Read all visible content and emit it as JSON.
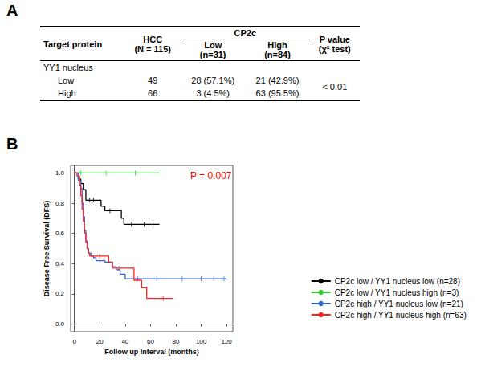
{
  "panel_labels": [
    "A",
    "B"
  ],
  "table": {
    "header": {
      "target": "Target protein",
      "hcc": [
        "HCC",
        "(N = 115)"
      ],
      "group": "CP2c",
      "subgroups": [
        [
          "Low",
          "(n=31)"
        ],
        [
          "High",
          "(n=84)"
        ]
      ],
      "p": [
        "P value",
        "(χ² test)"
      ]
    },
    "section": "YY1 nucleus",
    "rows": [
      [
        "Low",
        "49",
        "28 (57.1%)",
        "21 (42.9%)"
      ],
      [
        "High",
        "66",
        "3 (4.5%)",
        "63 (95.5%)"
      ]
    ],
    "p_value": "< 0.01"
  },
  "chart_data": {
    "type": "line",
    "annotation": "P = 0.007",
    "x_label": "Follow up Interval (months)",
    "y_label": "Disease Free Survival (DFS)",
    "xlim": [
      -3,
      125
    ],
    "xticks": [
      0,
      20,
      40,
      60,
      80,
      100,
      120
    ],
    "ylim": [
      -0.05,
      1.05
    ],
    "yticks": [
      {
        "value": 0,
        "label": "0.0"
      },
      0.2,
      0.4,
      0.6,
      0.8,
      {
        "value": 1,
        "label": "1.0"
      }
    ],
    "grid": false,
    "legend": "right",
    "line_style": "step",
    "series": [
      {
        "name": "CP2c low / YY1 nucleus low (n=28)",
        "color": "#000000",
        "x": [
          0,
          3,
          5,
          7,
          9,
          21,
          24,
          37,
          39,
          67
        ],
        "values": [
          1,
          0.96,
          0.93,
          0.89,
          0.82,
          0.78,
          0.75,
          0.7,
          0.66,
          0.66
        ],
        "censored": [
          [
            12,
            0.82
          ],
          [
            15,
            0.82
          ],
          [
            28,
            0.75
          ],
          [
            45,
            0.66
          ],
          [
            55,
            0.66
          ],
          [
            62,
            0.66
          ]
        ]
      },
      {
        "name": "CP2c low / YY1 nucleus high (n=3)",
        "color": "#33cc33",
        "x": [
          0,
          67
        ],
        "values": [
          1,
          1
        ],
        "censored": [
          [
            5,
            1
          ],
          [
            25,
            1
          ],
          [
            48,
            1
          ]
        ]
      },
      {
        "name": "CP2c high / YY1 nucleus low (n=21)",
        "color": "#3366cc",
        "x": [
          0,
          3,
          5,
          6,
          7,
          8,
          9,
          10,
          11,
          13,
          15,
          17,
          24,
          30,
          33,
          36,
          40,
          120
        ],
        "values": [
          1,
          0.95,
          0.9,
          0.8,
          0.71,
          0.62,
          0.55,
          0.5,
          0.47,
          0.45,
          0.44,
          0.42,
          0.41,
          0.38,
          0.36,
          0.33,
          0.3,
          0.3
        ],
        "censored": [
          [
            50,
            0.3
          ],
          [
            65,
            0.3
          ],
          [
            85,
            0.3
          ],
          [
            100,
            0.3
          ],
          [
            110,
            0.3
          ],
          [
            118,
            0.3
          ]
        ]
      },
      {
        "name": "CP2c high / YY1 nucleus high (n=63)",
        "color": "#ff2222",
        "x": [
          0,
          2,
          4,
          5,
          6,
          7,
          8,
          9,
          10,
          11,
          12,
          27,
          30,
          47,
          53,
          57,
          78
        ],
        "values": [
          1,
          0.98,
          0.92,
          0.85,
          0.76,
          0.68,
          0.6,
          0.54,
          0.5,
          0.47,
          0.45,
          0.41,
          0.37,
          0.29,
          0.24,
          0.17,
          0.17
        ],
        "censored": [
          [
            20,
            0.45
          ],
          [
            35,
            0.37
          ],
          [
            70,
            0.17
          ]
        ]
      }
    ]
  }
}
